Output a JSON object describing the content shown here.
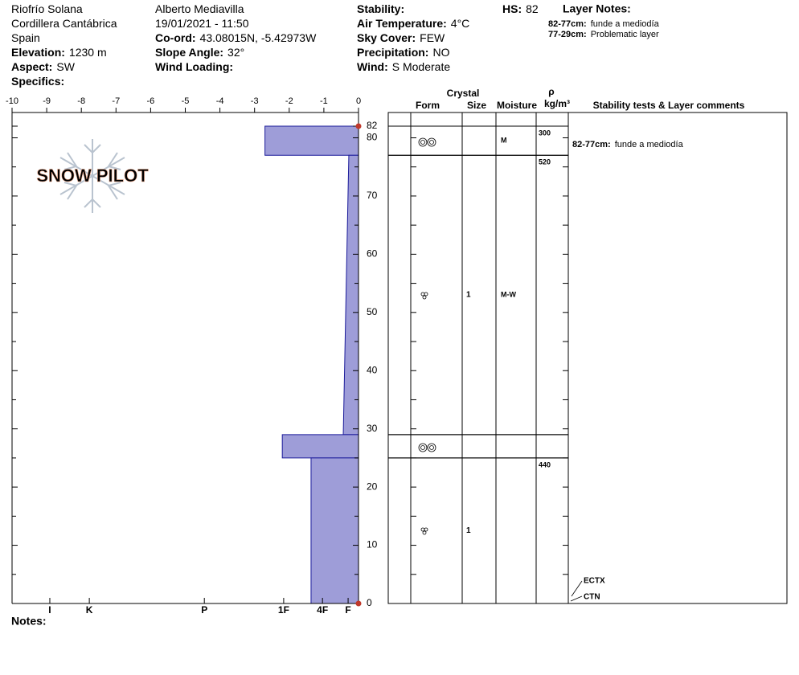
{
  "header": {
    "col1": [
      {
        "value": "Riofrío Solana"
      },
      {
        "value": "Cordillera Cantábrica"
      },
      {
        "value": "Spain"
      },
      {
        "label": "Elevation:",
        "value": "1230 m"
      },
      {
        "label": "Aspect:",
        "value": "SW"
      },
      {
        "label": "Specifics:"
      }
    ],
    "col2": [
      {
        "value": "Alberto Mediavilla"
      },
      {
        "value": "19/01/2021 - 11:50"
      },
      {
        "label": "Co-ord:",
        "value": "43.08015N, -5.42973W"
      },
      {
        "label": "Slope Angle:",
        "value": "32°"
      },
      {
        "label": "Wind Loading:"
      }
    ],
    "col3": [
      {
        "label": "Stability:"
      },
      {
        "label": "Air Temperature:",
        "value": "4°C"
      },
      {
        "label": "Sky Cover:",
        "value": "FEW"
      },
      {
        "label": "Precipitation:",
        "value": "NO"
      },
      {
        "label": "Wind:",
        "value": "S Moderate"
      }
    ],
    "hs": {
      "label": "HS:",
      "value": "82"
    },
    "layer_notes": {
      "title": "Layer Notes:",
      "items": [
        {
          "label": "82-77cm:",
          "value": "funde a mediodía"
        },
        {
          "label": "77-29cm:",
          "value": "Problematic layer"
        }
      ]
    },
    "notes_label": "Notes:",
    "logo": "SNOW PILOT"
  },
  "chart_data": {
    "type": "snow_profile",
    "color": "#9e9dd8",
    "xlim": [
      -10,
      0
    ],
    "xticks": [
      -10,
      -9,
      -8,
      -7,
      -6,
      -5,
      -4,
      -3,
      -2,
      -1,
      0
    ],
    "ylim": [
      0,
      82
    ],
    "yticks": [
      0,
      10,
      20,
      30,
      40,
      50,
      60,
      70,
      80,
      82
    ],
    "yticks_minor": [
      5,
      15,
      25,
      35,
      45,
      55,
      65,
      75
    ],
    "hardness_labels": [
      {
        "value": -8.91,
        "label": "I"
      },
      {
        "value": -7.77,
        "label": "K"
      },
      {
        "value": -4.45,
        "label": "P"
      },
      {
        "value": -2.16,
        "label": "1F"
      },
      {
        "value": -1.04,
        "label": "4F"
      },
      {
        "value": -0.3,
        "label": "F"
      }
    ],
    "layers": [
      {
        "top": 82,
        "bottom": 77,
        "hardness_top": -2.7,
        "hardness_bottom": -2.7,
        "moisture": "M",
        "density": 300,
        "comment": {
          "label": "82-77cm:",
          "value": "funde a mediodía"
        }
      },
      {
        "top": 77,
        "bottom": 29,
        "hardness_top": -0.28,
        "hardness_bottom": -0.44,
        "size": 1,
        "moisture": "M-W",
        "density": 520
      },
      {
        "top": 29,
        "bottom": 25,
        "hardness_top": -2.2,
        "hardness_bottom": -2.2
      },
      {
        "top": 25,
        "bottom": 0,
        "hardness_top": -1.37,
        "hardness_bottom": -1.37,
        "size": 1,
        "density": 440
      }
    ],
    "table_headers": {
      "crystal": "Crystal",
      "form": "Form",
      "size": "Size",
      "moisture": "Moisture",
      "rho": "ρ",
      "density_unit": "kg/m³",
      "comments": "Stability tests & Layer comments"
    },
    "tests": [
      "ECTX",
      "CTN"
    ]
  }
}
